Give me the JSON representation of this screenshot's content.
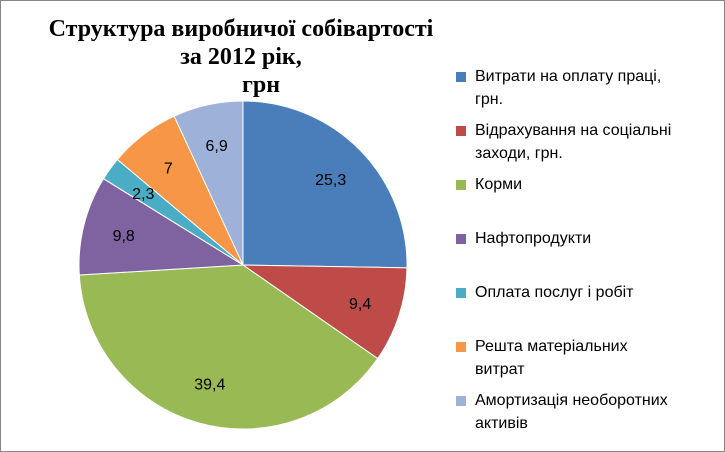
{
  "chart_data": {
    "type": "pie",
    "title": "Структура  виробничої собівартості  за 2012 рік, грн",
    "title_lines": [
      "Структура  виробничої собівартості  за 2012 рік,",
      "грн"
    ],
    "categories": [
      "Витрати на оплату праці, грн.",
      "Відрахування на соціальні заходи, грн.",
      "Корми",
      "Нафтопродукти",
      "Оплата послуг і робіт",
      "Решта матеріальних витрат",
      "Амортизація необоротних активів"
    ],
    "legend_lines": [
      [
        "Витрати на оплату праці,",
        "грн."
      ],
      [
        "Відрахування на соціальні",
        "заходи, грн."
      ],
      [
        "Корми"
      ],
      [
        "Нафтопродукти"
      ],
      [
        "Оплата послуг і робіт"
      ],
      [
        "Решта матеріальних",
        "витрат"
      ],
      [
        "Амортизація необоротних",
        "активів"
      ]
    ],
    "values": [
      25.3,
      9.4,
      39.4,
      9.8,
      2.3,
      7,
      6.9
    ],
    "data_labels": [
      "25,3",
      "9,4",
      "39,4",
      "9,8",
      "2,3",
      "7",
      "6,9"
    ],
    "colors": [
      "#4A7EBB",
      "#BE4B48",
      "#98B954",
      "#7E63A0",
      "#4BACC6",
      "#F79646",
      "#9EB1D8"
    ],
    "start_angle_deg": 0,
    "direction": "clockwise",
    "legend_position": "right"
  }
}
